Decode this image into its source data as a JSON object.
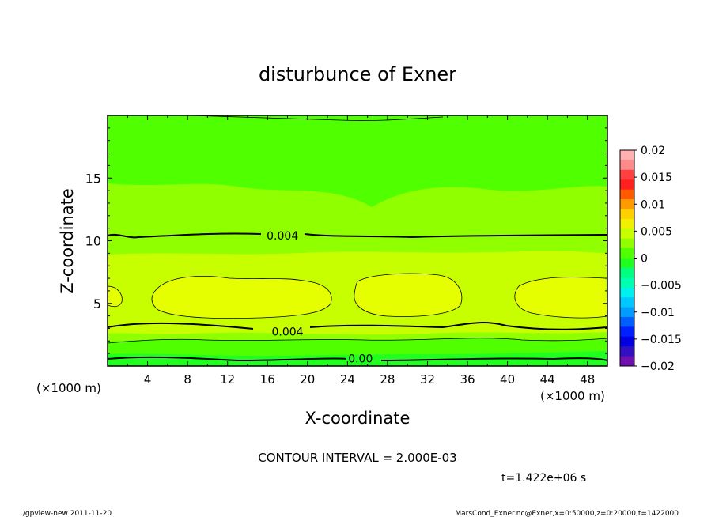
{
  "chart_data": {
    "type": "contour",
    "title": "disturbunce of Exner",
    "xlabel": "X-coordinate",
    "ylabel": "Z-coordinate",
    "x_unit_left": "(×1000 m)",
    "x_unit_right": "(×1000 m)",
    "xlim": [
      0,
      50
    ],
    "ylim": [
      0,
      20
    ],
    "x_ticks": [
      4,
      8,
      12,
      16,
      20,
      24,
      28,
      32,
      36,
      40,
      44,
      48
    ],
    "y_ticks": [
      5,
      10,
      15
    ],
    "contour_labels": [
      {
        "text": "0.004",
        "x": 17.5,
        "z": 10.4
      },
      {
        "text": "0.004",
        "x": 18.0,
        "z": 2.75
      },
      {
        "text": "0.00",
        "x": 25.3,
        "z": 0.6
      }
    ],
    "colorbar": {
      "ticks": [
        "0.02",
        "0.015",
        "0.01",
        "0.005",
        "0",
        "−0.005",
        "−0.01",
        "−0.015",
        "−0.02"
      ],
      "colors": [
        "#ffb0b0",
        "#ff8a8a",
        "#ff4040",
        "#ff2020",
        "#ff5a00",
        "#ff9a00",
        "#ffd000",
        "#f0f000",
        "#c8ff00",
        "#90ff00",
        "#50ff00",
        "#20ff20",
        "#00ff80",
        "#00ffb0",
        "#00f0f0",
        "#00c8ff",
        "#009cff",
        "#0060ff",
        "#0020ff",
        "#0000e0",
        "#3010c0",
        "#7010b0"
      ]
    },
    "field_colors": {
      "top": "#50ff00",
      "mid": "#90ff00",
      "warm": "#c8ff00",
      "core": "#e6ff00",
      "bottom1": "#50ff00",
      "bottom2": "#20ff20"
    },
    "contour_interval": "CONTOUR INTERVAL = 2.000E-03",
    "time_label": "t=1.422e+06 s"
  },
  "footer": {
    "left": "./gpview-new   2011-11-20",
    "right": "MarsCond_Exner.nc@Exner,x=0:50000,z=0:20000,t=1422000"
  }
}
